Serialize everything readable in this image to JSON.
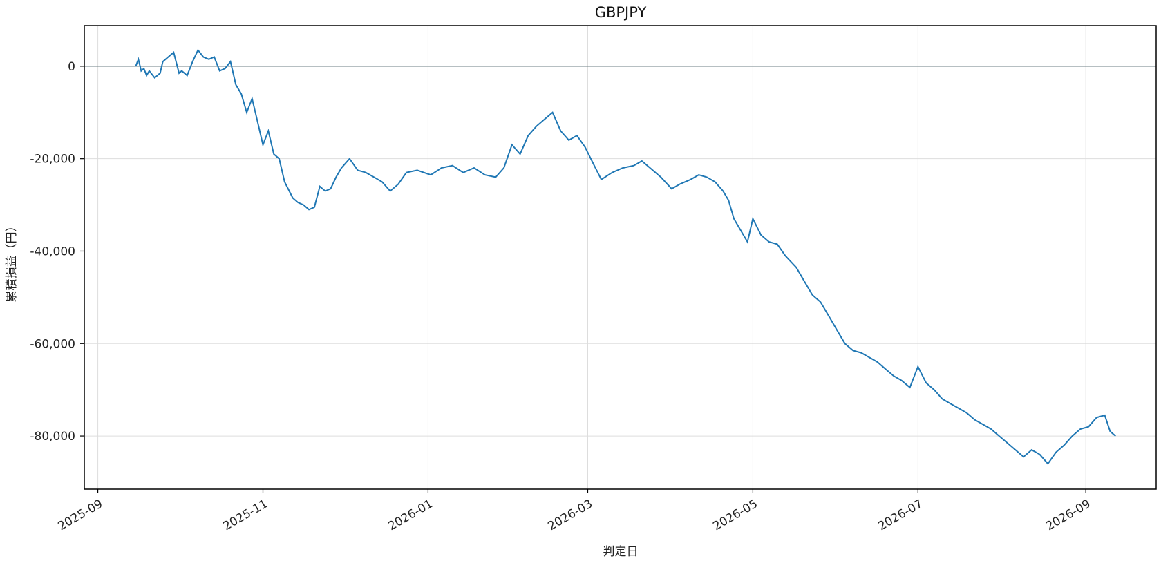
{
  "chart_data": {
    "type": "line",
    "title": "GBPJPY",
    "xlabel": "判定日",
    "ylabel": "累積損益（円）",
    "x_ticks": [
      "2025-09",
      "2025-11",
      "2026-01",
      "2026-03",
      "2026-05",
      "2026-07",
      "2026-09"
    ],
    "y_ticks": [
      0,
      -20000,
      -40000,
      -60000,
      -80000
    ],
    "y_tick_labels": [
      "0",
      "-20,000",
      "-40,000",
      "-60,000",
      "-80,000"
    ],
    "xlim": [
      "2025-08-27",
      "2026-09-27"
    ],
    "ylim": [
      -91500,
      8800
    ],
    "grid": true,
    "zero_line": true,
    "colors": {
      "series": "#1f77b4",
      "zero_line": "#6e7f85",
      "grid": "#dddddd",
      "frame": "#000000"
    },
    "series": [
      {
        "x": [
          "2025-09-15",
          "2025-09-16",
          "2025-09-17",
          "2025-09-18",
          "2025-09-19",
          "2025-09-20",
          "2025-09-22",
          "2025-09-24",
          "2025-09-25",
          "2025-09-27",
          "2025-09-29",
          "2025-10-01",
          "2025-10-02",
          "2025-10-04",
          "2025-10-06",
          "2025-10-08",
          "2025-10-10",
          "2025-10-12",
          "2025-10-14",
          "2025-10-16",
          "2025-10-18",
          "2025-10-20",
          "2025-10-22",
          "2025-10-24",
          "2025-10-26",
          "2025-10-28",
          "2025-10-30",
          "2025-11-01",
          "2025-11-03",
          "2025-11-05",
          "2025-11-07",
          "2025-11-09",
          "2025-11-12",
          "2025-11-14",
          "2025-11-16",
          "2025-11-18",
          "2025-11-20",
          "2025-11-22",
          "2025-11-24",
          "2025-11-26",
          "2025-11-28",
          "2025-11-30",
          "2025-12-03",
          "2025-12-06",
          "2025-12-09",
          "2025-12-12",
          "2025-12-15",
          "2025-12-18",
          "2025-12-21",
          "2025-12-24",
          "2025-12-28",
          "2026-01-02",
          "2026-01-06",
          "2026-01-10",
          "2026-01-14",
          "2026-01-18",
          "2026-01-22",
          "2026-01-26",
          "2026-01-29",
          "2026-02-01",
          "2026-02-04",
          "2026-02-07",
          "2026-02-10",
          "2026-02-13",
          "2026-02-16",
          "2026-02-19",
          "2026-02-22",
          "2026-02-25",
          "2026-02-28",
          "2026-03-03",
          "2026-03-06",
          "2026-03-10",
          "2026-03-14",
          "2026-03-18",
          "2026-03-21",
          "2026-03-24",
          "2026-03-28",
          "2026-04-01",
          "2026-04-04",
          "2026-04-08",
          "2026-04-11",
          "2026-04-14",
          "2026-04-17",
          "2026-04-20",
          "2026-04-22",
          "2026-04-24",
          "2026-04-27",
          "2026-04-29",
          "2026-05-01",
          "2026-05-04",
          "2026-05-07",
          "2026-05-10",
          "2026-05-13",
          "2026-05-17",
          "2026-05-20",
          "2026-05-23",
          "2026-05-26",
          "2026-05-29",
          "2026-06-01",
          "2026-06-04",
          "2026-06-07",
          "2026-06-10",
          "2026-06-13",
          "2026-06-16",
          "2026-06-19",
          "2026-06-22",
          "2026-06-25",
          "2026-06-28",
          "2026-07-01",
          "2026-07-04",
          "2026-07-07",
          "2026-07-10",
          "2026-07-13",
          "2026-07-16",
          "2026-07-19",
          "2026-07-22",
          "2026-07-25",
          "2026-07-28",
          "2026-07-31",
          "2026-08-03",
          "2026-08-06",
          "2026-08-09",
          "2026-08-12",
          "2026-08-15",
          "2026-08-18",
          "2026-08-21",
          "2026-08-24",
          "2026-08-27",
          "2026-08-30",
          "2026-09-02",
          "2026-09-05",
          "2026-09-08",
          "2026-09-10",
          "2026-09-12"
        ],
        "y": [
          0,
          1500,
          -1000,
          -500,
          -2000,
          -1000,
          -2500,
          -1500,
          1000,
          2000,
          3000,
          -1500,
          -1000,
          -2000,
          1000,
          3500,
          2000,
          1500,
          2000,
          -1000,
          -500,
          1000,
          -4000,
          -6000,
          -10000,
          -7000,
          -12000,
          -17000,
          -14000,
          -19000,
          -20000,
          -25000,
          -28500,
          -29500,
          -30000,
          -31000,
          -30500,
          -26000,
          -27000,
          -26500,
          -24000,
          -22000,
          -20000,
          -22500,
          -23000,
          -24000,
          -25000,
          -27000,
          -25500,
          -23000,
          -22500,
          -23500,
          -22000,
          -21500,
          -23000,
          -22000,
          -23500,
          -24000,
          -22000,
          -17000,
          -19000,
          -15000,
          -13000,
          -11500,
          -10000,
          -14000,
          -16000,
          -15000,
          -17500,
          -21000,
          -24500,
          -23000,
          -22000,
          -21500,
          -20500,
          -22000,
          -24000,
          -26500,
          -25500,
          -24500,
          -23500,
          -24000,
          -25000,
          -27000,
          -29000,
          -33000,
          -36000,
          -38000,
          -33000,
          -36500,
          -38000,
          -38500,
          -41000,
          -43500,
          -46500,
          -49500,
          -51000,
          -54000,
          -57000,
          -60000,
          -61500,
          -62000,
          -63000,
          -64000,
          -65500,
          -67000,
          -68000,
          -69500,
          -65000,
          -68500,
          -70000,
          -72000,
          -73000,
          -74000,
          -75000,
          -76500,
          -77500,
          -78500,
          -80000,
          -81500,
          -83000,
          -84500,
          -83000,
          -84000,
          -86000,
          -83500,
          -82000,
          -80000,
          -78500,
          -78000,
          -76000,
          -75500,
          -79000,
          -80000
        ]
      }
    ]
  }
}
